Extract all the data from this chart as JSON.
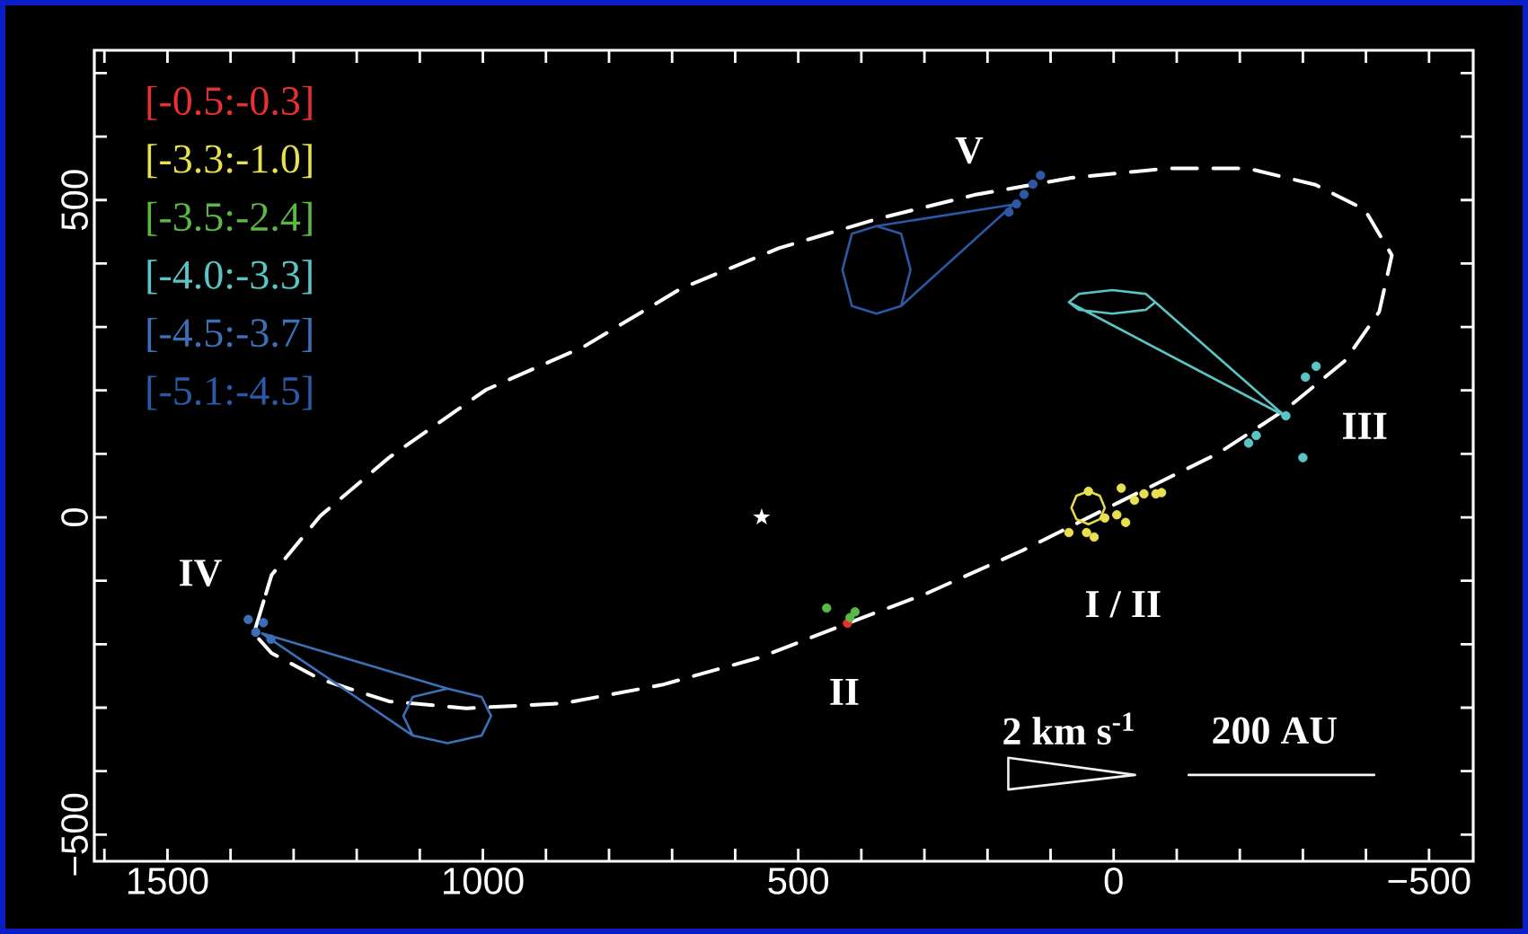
{
  "chart_data": {
    "type": "scatter",
    "xlim": [
      1616,
      -570
    ],
    "ylim": [
      -542,
      736
    ],
    "xticks": [
      {
        "value": 1600,
        "label": null
      },
      1500,
      {
        "value": 1400,
        "label": null
      },
      {
        "value": 1300,
        "label": null
      },
      {
        "value": 1200,
        "label": null
      },
      {
        "value": 1100,
        "label": null
      },
      1000,
      {
        "value": 900,
        "label": null
      },
      {
        "value": 800,
        "label": null
      },
      {
        "value": 700,
        "label": null
      },
      {
        "value": 600,
        "label": null
      },
      500,
      {
        "value": 400,
        "label": null
      },
      {
        "value": 300,
        "label": null
      },
      {
        "value": 200,
        "label": null
      },
      {
        "value": 100,
        "label": null
      },
      0,
      {
        "value": -100,
        "label": null
      },
      {
        "value": -200,
        "label": null
      },
      {
        "value": -300,
        "label": null
      },
      {
        "value": -400,
        "label": null
      },
      {
        "value": -500,
        "label": "−500"
      }
    ],
    "yticks": [
      {
        "value": -500,
        "label": "−500"
      },
      {
        "value": -400,
        "label": null
      },
      {
        "value": -300,
        "label": null
      },
      {
        "value": -200,
        "label": null
      },
      {
        "value": -100,
        "label": null
      },
      0,
      {
        "value": 100,
        "label": null
      },
      {
        "value": 200,
        "label": null
      },
      {
        "value": 300,
        "label": null
      },
      {
        "value": 400,
        "label": null
      },
      500,
      {
        "value": 600,
        "label": null
      },
      {
        "value": 700,
        "label": null
      }
    ],
    "legend": "top left",
    "series": [
      {
        "name": "[-0.5:-0.3]",
        "color": "#e8302e",
        "marker": "circle",
        "x": [
          422
        ],
        "values": [
          -167
        ]
      },
      {
        "name": "[-3.3:-1.0]",
        "color": "#e8e04e",
        "marker": "circle",
        "x": [
          40,
          -12,
          -33,
          -48,
          -67,
          -76,
          14,
          -5,
          -19,
          71,
          43,
          31
        ],
        "values": [
          41,
          46,
          27,
          37,
          37,
          39,
          -1,
          4,
          -8,
          -24,
          -24,
          -31
        ]
      },
      {
        "name": "[-3.5:-2.4]",
        "color": "#5cb846",
        "marker": "circle",
        "x": [
          455,
          410,
          418
        ],
        "values": [
          -143,
          -149,
          -158
        ]
      },
      {
        "name": "[-4.0:-3.3]",
        "color": "#5bc4c4",
        "marker": "circle",
        "x": [
          -273,
          -304,
          -321,
          -300,
          -214,
          -226
        ],
        "values": [
          160,
          221,
          238,
          94,
          117,
          129
        ]
      },
      {
        "name": "[-4.5:-3.7]",
        "color": "#3c70b6",
        "marker": "circle",
        "x": [
          1372,
          1348,
          1360,
          1336
        ],
        "values": [
          -161,
          -166,
          -181,
          -192
        ]
      },
      {
        "name": "[-5.1:-4.5]",
        "color": "#2c58a6",
        "marker": "circle",
        "x": [
          116,
          128,
          142,
          154,
          166
        ],
        "values": [
          539,
          525,
          509,
          494,
          481
        ]
      },
      {
        "color": "#ffffff",
        "type": "line",
        "line_style": "dashed",
        "x": [
          1363,
          1335,
          1258,
          1149,
          995,
          840,
          685,
          531,
          376,
          221,
          67,
          -88,
          -212,
          -320,
          -398,
          -441,
          -421,
          -367,
          -274,
          -166,
          -11,
          144,
          299,
          422,
          561,
          716,
          871,
          1026,
          1149,
          1258,
          1335,
          1363,
          1335
        ],
        "values": [
          -183,
          -91,
          2,
          94,
          201,
          269,
          361,
          424,
          470,
          508,
          535,
          550,
          550,
          524,
          485,
          413,
          324,
          247,
          171,
          101,
          25,
          -52,
          -121,
          -167,
          -221,
          -264,
          -293,
          -301,
          -290,
          -255,
          -214,
          -183,
          -91
        ]
      },
      {
        "color": "#ffffff",
        "marker": "star",
        "x": [
          558
        ],
        "values": [
          0
        ]
      },
      {
        "color": "#2c58a6",
        "type": "line",
        "line_style": "solid",
        "x": [
          337,
          322,
          337,
          376,
          159,
          337,
          376,
          415,
          430,
          415,
          376
        ],
        "values": [
          333,
          390,
          447,
          459,
          493,
          333,
          321,
          333,
          390,
          447,
          459
        ]
      },
      {
        "color": "#3c70b6",
        "type": "line",
        "line_style": "solid",
        "x": [
          1111,
          1126,
          1111,
          1056,
          1350,
          1111,
          1056,
          1002,
          987,
          1002,
          1056
        ],
        "values": [
          -344,
          -313,
          -283,
          -270,
          -183,
          -344,
          -356,
          -344,
          -313,
          -283,
          -270
        ]
      },
      {
        "color": "#5bc4c4",
        "type": "line",
        "line_style": "solid",
        "x": [
          -66,
          -51,
          2,
          55,
          71,
          -271,
          -66,
          -51,
          2,
          55,
          71
        ],
        "values": [
          339,
          327,
          321,
          327,
          339,
          160,
          339,
          352,
          358,
          352,
          339
        ]
      },
      {
        "color": "#e2d848",
        "type": "line",
        "line_style": "solid",
        "x": [
          40,
          22,
          14,
          22,
          40,
          59,
          67,
          59,
          40,
          22
        ],
        "values": [
          41,
          34,
          15,
          -3,
          -11,
          -3,
          15,
          34,
          41,
          34
        ]
      },
      {
        "color": "#f0f0f0",
        "type": "line",
        "line_style": "solid",
        "x": [
          167,
          -34,
          167,
          167,
          -34
        ],
        "values": [
          -379,
          -406,
          -429,
          -379,
          -406
        ]
      },
      {
        "color": "#f7f7f7",
        "type": "line",
        "line_style": "solid",
        "x": [
          -119,
          -413
        ],
        "values": [
          -406,
          -406
        ]
      }
    ],
    "annotations": [
      "V",
      "IV",
      "III",
      "I / II",
      "II",
      "2 km s$^{-1}$",
      "200 AU"
    ]
  }
}
